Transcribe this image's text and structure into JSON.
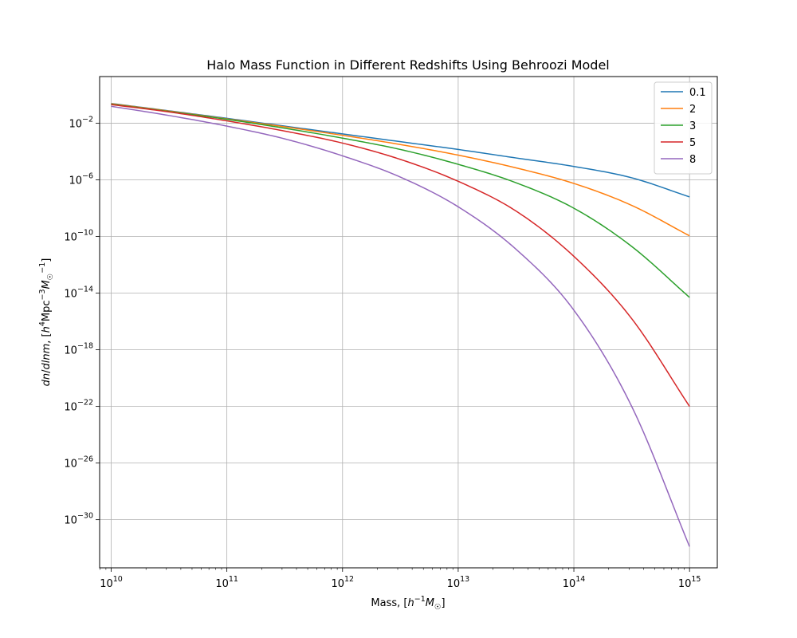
{
  "chart_data": {
    "type": "line",
    "title": "Halo Mass Function in Different Redshifts Using Behroozi Model",
    "xlabel": "Mass, [h⁻¹M☉]",
    "ylabel": "dn/dlnm, [h⁴Mpc⁻³M☉⁻¹]",
    "xscale": "log",
    "yscale": "log",
    "xlim_exp": [
      9.9,
      15.24
    ],
    "ylim_exp": [
      -33.4,
      1.3
    ],
    "x_ticks": [
      {
        "base": "10",
        "exp": "10",
        "value_exp": 10
      },
      {
        "base": "10",
        "exp": "11",
        "value_exp": 11
      },
      {
        "base": "10",
        "exp": "12",
        "value_exp": 12
      },
      {
        "base": "10",
        "exp": "13",
        "value_exp": 13
      },
      {
        "base": "10",
        "exp": "14",
        "value_exp": 14
      },
      {
        "base": "10",
        "exp": "15",
        "value_exp": 15
      }
    ],
    "y_ticks": [
      {
        "base": "10",
        "exp": "−2",
        "value_exp": -2
      },
      {
        "base": "10",
        "exp": "−6",
        "value_exp": -6
      },
      {
        "base": "10",
        "exp": "−10",
        "value_exp": -10
      },
      {
        "base": "10",
        "exp": "−14",
        "value_exp": -14
      },
      {
        "base": "10",
        "exp": "−18",
        "value_exp": -18
      },
      {
        "base": "10",
        "exp": "−22",
        "value_exp": -22
      },
      {
        "base": "10",
        "exp": "−26",
        "value_exp": -26
      },
      {
        "base": "10",
        "exp": "−30",
        "value_exp": -30
      }
    ],
    "grid": true,
    "legend_position": "top-right",
    "x_log10": [
      10,
      10.5,
      11,
      11.5,
      12,
      12.5,
      13,
      13.5,
      14,
      14.5,
      15
    ],
    "series": [
      {
        "name": "0.1",
        "color": "#1f77b4",
        "y_log10": [
          -0.6,
          -1.12,
          -1.65,
          -2.2,
          -2.75,
          -3.3,
          -3.85,
          -4.45,
          -5.05,
          -5.85,
          -7.2
        ]
      },
      {
        "name": "2",
        "color": "#ff7f0e",
        "y_log10": [
          -0.62,
          -1.14,
          -1.69,
          -2.25,
          -2.85,
          -3.5,
          -4.25,
          -5.15,
          -6.25,
          -7.8,
          -9.95
        ]
      },
      {
        "name": "3",
        "color": "#2ca02c",
        "y_log10": [
          -0.65,
          -1.17,
          -1.72,
          -2.35,
          -3.05,
          -3.85,
          -4.9,
          -6.2,
          -8.0,
          -10.7,
          -14.3
        ]
      },
      {
        "name": "5",
        "color": "#d62728",
        "y_log10": [
          -0.68,
          -1.2,
          -1.83,
          -2.55,
          -3.4,
          -4.55,
          -6.1,
          -8.2,
          -11.4,
          -15.8,
          -22.0
        ]
      },
      {
        "name": "8",
        "color": "#9467bd",
        "y_log10": [
          -0.8,
          -1.45,
          -2.2,
          -3.1,
          -4.3,
          -5.8,
          -7.9,
          -10.9,
          -15.2,
          -22.0,
          -31.9
        ]
      }
    ]
  }
}
